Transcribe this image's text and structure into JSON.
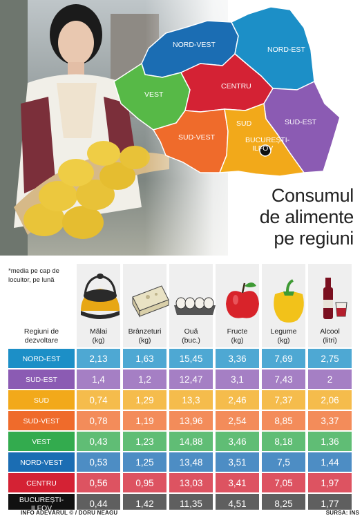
{
  "title": {
    "lines": [
      "Consumul",
      "de alimente",
      "pe regiuni"
    ]
  },
  "note": "*media pe cap de locuitor, pe lună",
  "map": {
    "regions": [
      {
        "name": "NORD-VEST",
        "color": "#1b6db3"
      },
      {
        "name": "NORD-EST",
        "color": "#1c8fc7"
      },
      {
        "name": "VEST",
        "color": "#57b947"
      },
      {
        "name": "CENTRU",
        "color": "#d42234"
      },
      {
        "name": "SUD-EST",
        "color": "#8b5bb3"
      },
      {
        "name": "SUD-VEST",
        "color": "#ef6b2b"
      },
      {
        "name": "SUD",
        "color": "#f2a91a"
      },
      {
        "name": "BUCUREȘTI-ILFOV",
        "color": "#111111"
      }
    ]
  },
  "chart_data": {
    "type": "table",
    "title": "Consumul de alimente pe regiuni",
    "row_header": [
      "Regiuni de",
      "dezvoltare"
    ],
    "columns": [
      {
        "label": "Mălai",
        "unit": "(kg)",
        "icon": "cornmeal-pot-icon"
      },
      {
        "label": "Brânzeturi",
        "unit": "(kg)",
        "icon": "cheese-icon"
      },
      {
        "label": "Ouă",
        "unit": "(buc.)",
        "icon": "eggs-icon"
      },
      {
        "label": "Fructe",
        "unit": "(kg)",
        "icon": "apple-icon"
      },
      {
        "label": "Legume",
        "unit": "(kg)",
        "icon": "pepper-icon"
      },
      {
        "label": "Alcool",
        "unit": "(litri)",
        "icon": "wine-icon"
      }
    ],
    "rows": [
      {
        "region": "NORD-EST",
        "color": "#1c8fc7",
        "values": [
          "2,13",
          "1,63",
          "15,45",
          "3,36",
          "7,69",
          "2,75"
        ]
      },
      {
        "region": "SUD-EST",
        "color": "#8b5bb3",
        "values": [
          "1,4",
          "1,2",
          "12,47",
          "3,1",
          "7,43",
          "2"
        ]
      },
      {
        "region": "SUD",
        "color": "#f2a91a",
        "values": [
          "0,74",
          "1,29",
          "13,3",
          "2,46",
          "7,37",
          "2,06"
        ]
      },
      {
        "region": "SUD-VEST",
        "color": "#ef6b2b",
        "values": [
          "0,78",
          "1,19",
          "13,96",
          "2,54",
          "8,85",
          "3,37"
        ]
      },
      {
        "region": "VEST",
        "color": "#33ab4e",
        "values": [
          "0,43",
          "1,23",
          "14,88",
          "3,46",
          "8,18",
          "1,36"
        ]
      },
      {
        "region": "NORD-VEST",
        "color": "#1b6db3",
        "values": [
          "0,53",
          "1,25",
          "13,48",
          "3,51",
          "7,5",
          "1,44"
        ]
      },
      {
        "region": "CENTRU",
        "color": "#d42234",
        "values": [
          "0,56",
          "0,95",
          "13,03",
          "3,41",
          "7,05",
          "1,97"
        ]
      },
      {
        "region": "BUCUREȘTI-ILFOV",
        "color": "#111111",
        "values": [
          "0,44",
          "1,42",
          "11,35",
          "4,51",
          "8,25",
          "1,77"
        ]
      }
    ]
  },
  "footer": {
    "left": "INFO ADEVĂRUL © / DORU NEAGU",
    "right": "SURSA: INS"
  }
}
